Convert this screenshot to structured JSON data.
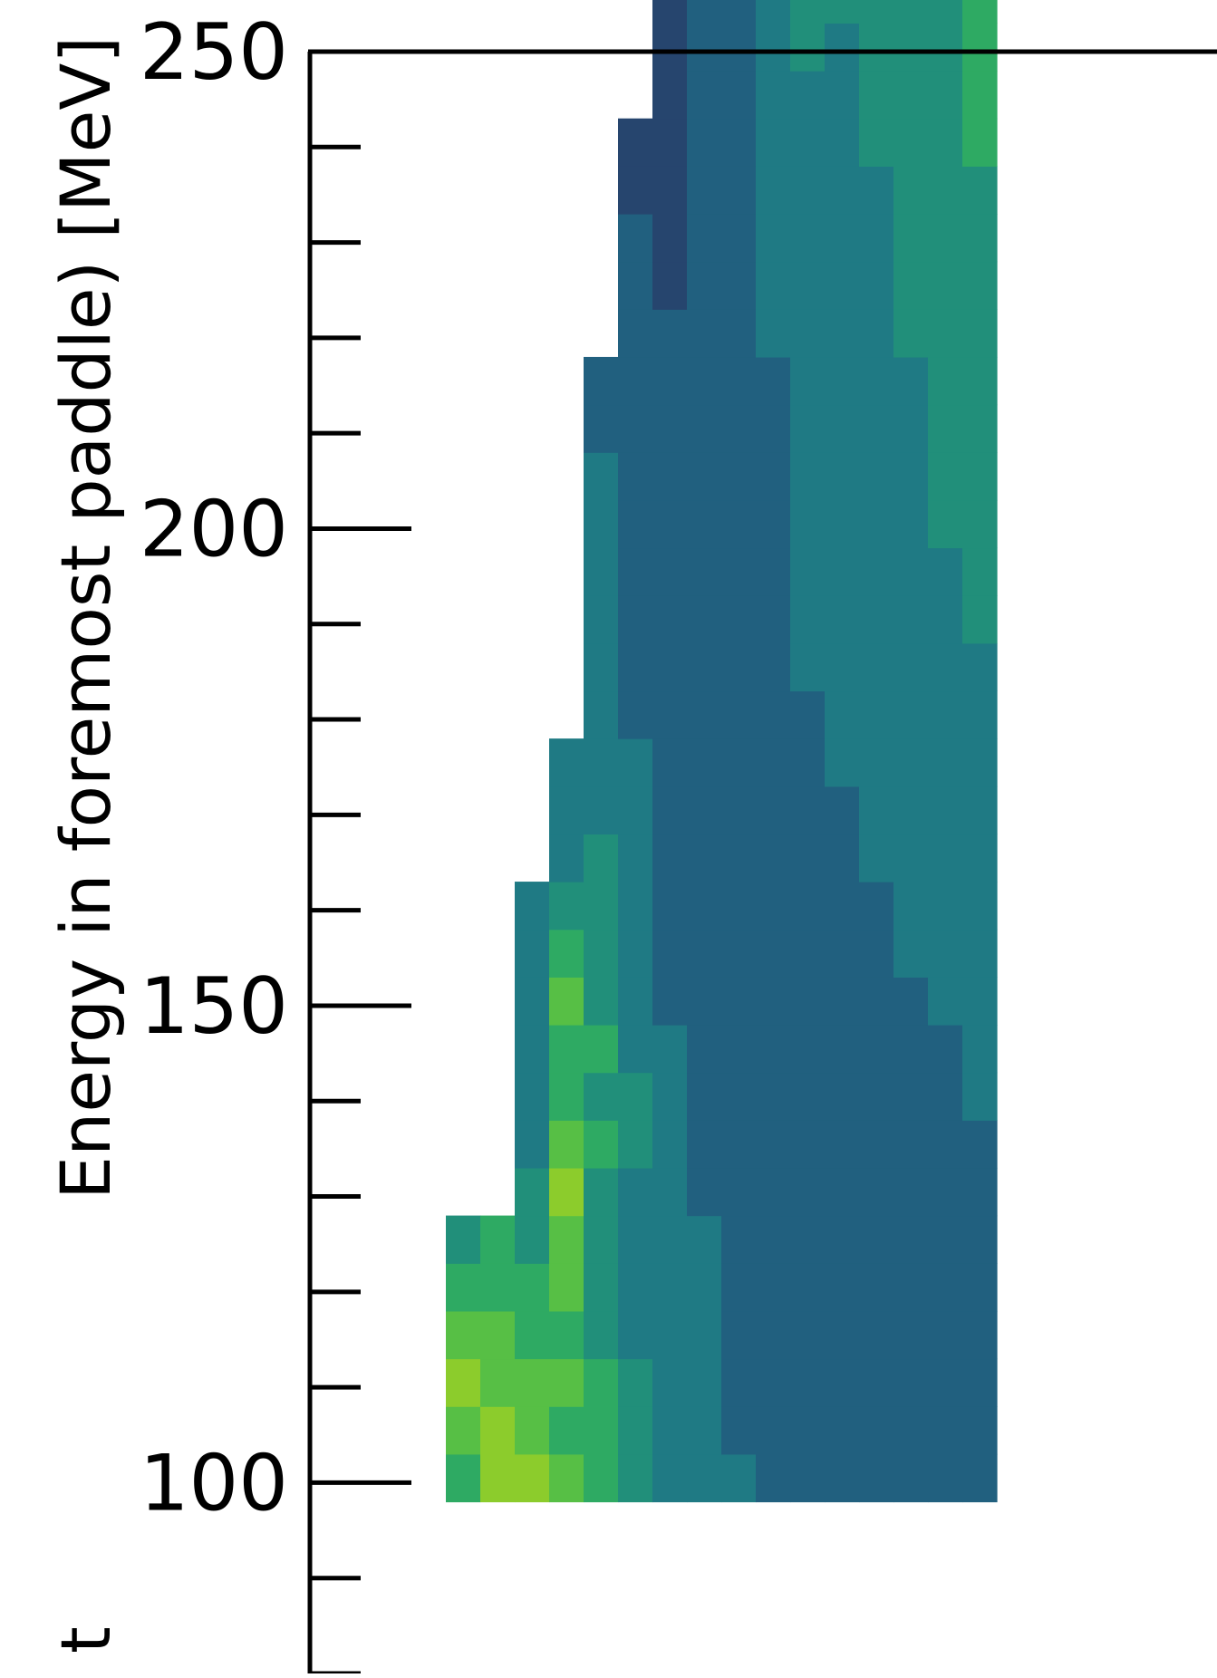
{
  "chart_data": {
    "type": "heatmap",
    "title": "",
    "ylabel": "Energy in foremost paddle) [MeV]",
    "ylabel_visible_prefix_glyph": "t",
    "y_axis": {
      "range": [
        80,
        250
      ],
      "major_ticks": [
        100,
        150,
        200,
        250
      ],
      "major_tick_labels": [
        "100",
        "150",
        "200",
        "250"
      ],
      "minor_tick_step": 10
    },
    "x_axis": {
      "visible": false
    },
    "bin_height_mev": 5,
    "colormap": [
      "#26456e",
      "#21607f",
      "#1f7a84",
      "#218f7a",
      "#2eaa63",
      "#57bf45",
      "#8ccc2c",
      "#c6d313"
    ],
    "empty_value": 0,
    "grid": "off",
    "legend": "none",
    "columns": [
      {
        "y0": 98,
        "levels": [
          5,
          6,
          7,
          6,
          5,
          4
        ]
      },
      {
        "y0": 98,
        "levels": [
          7,
          7,
          6,
          6,
          5,
          5
        ]
      },
      {
        "y0": 98,
        "levels": [
          7,
          6,
          6,
          5,
          5,
          4,
          4,
          3,
          3,
          3,
          3,
          3,
          3
        ]
      },
      {
        "y0": 98,
        "levels": [
          6,
          5,
          6,
          5,
          6,
          6,
          7,
          6,
          5,
          5,
          6,
          5,
          4,
          3,
          3,
          3
        ]
      },
      {
        "y0": 98,
        "levels": [
          5,
          5,
          5,
          4,
          4,
          4,
          4,
          5,
          4,
          5,
          4,
          4,
          4,
          4,
          3,
          3,
          3,
          3,
          3,
          3,
          3,
          3,
          2,
          2
        ]
      },
      {
        "y0": 98,
        "levels": [
          4,
          4,
          4,
          3,
          3,
          3,
          3,
          4,
          4,
          3,
          3,
          3,
          3,
          3,
          3,
          3,
          2,
          2,
          2,
          2,
          2,
          2,
          2,
          2,
          2,
          2,
          2,
          1,
          1
        ]
      },
      {
        "y0": 98,
        "levels": [
          3,
          3,
          3,
          3,
          3,
          3,
          3,
          3,
          3,
          3,
          2,
          2,
          2,
          2,
          2,
          2,
          2,
          2,
          2,
          2,
          2,
          2,
          2,
          2,
          2,
          1,
          1,
          1,
          1,
          1,
          1,
          1,
          1,
          1,
          1,
          1,
          1,
          1
        ]
      },
      {
        "y0": 98,
        "levels": [
          3,
          3,
          3,
          3,
          3,
          3,
          2,
          2,
          2,
          2,
          2,
          2,
          2,
          2,
          2,
          2,
          2,
          2,
          2,
          2,
          2,
          2,
          2,
          2,
          2,
          2,
          2,
          2,
          2,
          2,
          2,
          2,
          2,
          2,
          2,
          2,
          2,
          2,
          2,
          2,
          2,
          2,
          1
        ]
      },
      {
        "y0": 98,
        "levels": [
          3,
          2,
          2,
          2,
          2,
          2,
          2,
          2,
          2,
          2,
          2,
          2,
          2,
          2,
          2,
          2,
          2,
          2,
          2,
          2,
          2,
          2,
          2,
          2,
          2,
          2,
          2,
          2,
          2,
          2,
          2,
          2,
          2,
          2,
          2,
          2,
          3,
          3,
          3,
          3,
          3,
          3,
          3,
          3,
          3,
          3,
          3,
          3,
          3,
          3
        ]
      },
      {
        "y0": 98,
        "levels": [
          2,
          2,
          2,
          2,
          2,
          2,
          2,
          2,
          2,
          2,
          2,
          2,
          2,
          2,
          2,
          2,
          2,
          2,
          2,
          2,
          2,
          2,
          2,
          2,
          3,
          3,
          3,
          3,
          3,
          3,
          3,
          3,
          3,
          3,
          3,
          3,
          3,
          3,
          3,
          4,
          4,
          4,
          4,
          4,
          4,
          4,
          4,
          4,
          5,
          5,
          6,
          6,
          7,
          7,
          8,
          8,
          8,
          8,
          8,
          8,
          8,
          8,
          0,
          0,
          7,
          8,
          8,
          8,
          8,
          8,
          8,
          8,
          8,
          8,
          8,
          8,
          8,
          8,
          8,
          8,
          8,
          0,
          8,
          8,
          8,
          8,
          8,
          8,
          8,
          8,
          8,
          8,
          8,
          8,
          8,
          8,
          8,
          8
        ]
      },
      {
        "y0": 98,
        "levels": [
          2,
          2,
          2,
          2,
          2,
          2,
          2,
          2,
          2,
          2,
          2,
          2,
          2,
          2,
          2,
          2,
          2,
          3,
          3,
          3,
          3,
          3,
          3,
          3,
          3,
          3,
          3,
          3,
          3,
          3,
          4,
          4,
          4,
          4,
          4,
          4,
          4,
          4,
          4,
          4,
          4,
          4,
          4,
          4,
          4,
          4,
          4,
          5,
          5,
          5,
          5,
          6,
          6,
          6,
          6,
          6,
          6,
          7,
          7,
          7,
          8,
          8,
          8,
          8,
          8
        ]
      },
      {
        "y0": 98,
        "levels": [
          2,
          2,
          2,
          2,
          2,
          2,
          2,
          2,
          2,
          2,
          2,
          2,
          2,
          2,
          2,
          3,
          3,
          3,
          3,
          3,
          3,
          3,
          3,
          3,
          3,
          3,
          3,
          3,
          3,
          3,
          3,
          4,
          4,
          4,
          4,
          4,
          4,
          4,
          4,
          4,
          4,
          4,
          4,
          4,
          4,
          5,
          5,
          5,
          5,
          5,
          5,
          5,
          6,
          6,
          6,
          6,
          6,
          6,
          6,
          6,
          6
        ]
      },
      {
        "y0": 98,
        "levels": [
          2,
          2,
          2,
          2,
          2,
          2,
          2,
          2,
          2,
          2,
          2,
          2,
          2,
          3,
          3,
          3,
          3,
          3,
          3,
          3,
          3,
          3,
          3,
          3,
          3,
          3,
          3,
          3,
          4,
          4,
          4,
          4,
          4,
          4,
          4,
          4,
          4,
          4,
          5,
          5,
          5,
          5,
          5,
          5,
          5,
          5,
          5,
          5,
          5,
          5,
          6,
          6,
          6
        ]
      },
      {
        "y0": 98,
        "levels": [
          2,
          2,
          2,
          2,
          2,
          2,
          2,
          2,
          2,
          2,
          2,
          3,
          3,
          3,
          3,
          3,
          3,
          3,
          3,
          3,
          3,
          3,
          3,
          3,
          4,
          4,
          4,
          4,
          4,
          4,
          4,
          4,
          4,
          4,
          4,
          4,
          5,
          5,
          5,
          5,
          5,
          5,
          5,
          5,
          5,
          5,
          5,
          5,
          6,
          6
        ]
      },
      {
        "y0": 98,
        "levels": [
          2,
          2,
          2,
          2,
          2,
          2,
          2,
          2,
          2,
          2,
          3,
          3,
          3,
          3,
          3,
          3,
          3,
          3,
          3,
          3,
          4,
          4,
          4,
          4,
          4,
          4,
          4,
          4,
          4,
          4,
          4,
          4,
          5,
          5,
          5,
          5,
          5,
          5,
          5,
          6,
          6,
          6,
          6,
          7,
          7
        ]
      },
      {
        "y0": 98,
        "levels": [
          2,
          2,
          2,
          2,
          2,
          2,
          2,
          2,
          3,
          3,
          3,
          3,
          3,
          3,
          3,
          3,
          3,
          3,
          4,
          4,
          4,
          4,
          4,
          4,
          4,
          4,
          4,
          4,
          5,
          5,
          5,
          5,
          5,
          5,
          6,
          6,
          7,
          7,
          8,
          8
        ]
      }
    ]
  }
}
